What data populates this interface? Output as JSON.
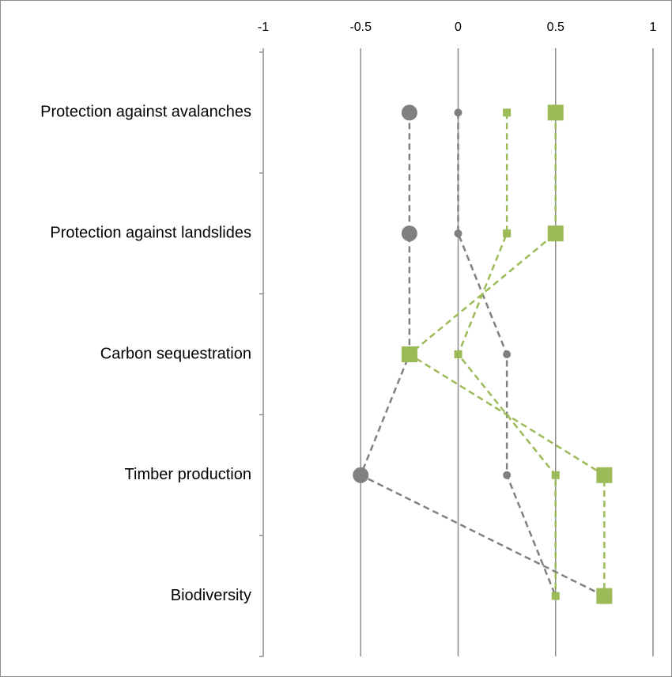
{
  "chart_data": {
    "type": "line",
    "orientation": "horizontal",
    "categories": [
      "Protection against avalanches",
      "Protection against landslides",
      "Carbon sequestration",
      "Timber production",
      "Biodiversity"
    ],
    "series": [
      {
        "color": "#808080",
        "marker": "circle",
        "values": [
          -0.25,
          -0.25,
          -0.25,
          -0.5,
          0.75
        ]
      },
      {
        "color": "#808080",
        "marker": "circle",
        "values": [
          0,
          0,
          0.25,
          0.25,
          0.5
        ]
      },
      {
        "color": "#9bbb59",
        "marker": "square",
        "values": [
          0.25,
          0.25,
          0,
          0.5,
          0.5
        ]
      },
      {
        "color": "#9bbb59",
        "marker": "square",
        "values": [
          0.5,
          0.5,
          -0.25,
          0.75,
          0.75
        ]
      }
    ],
    "xlim": [
      -1,
      1
    ],
    "xticks": [
      -1,
      -0.5,
      0,
      0.5,
      1
    ],
    "grid": true
  }
}
